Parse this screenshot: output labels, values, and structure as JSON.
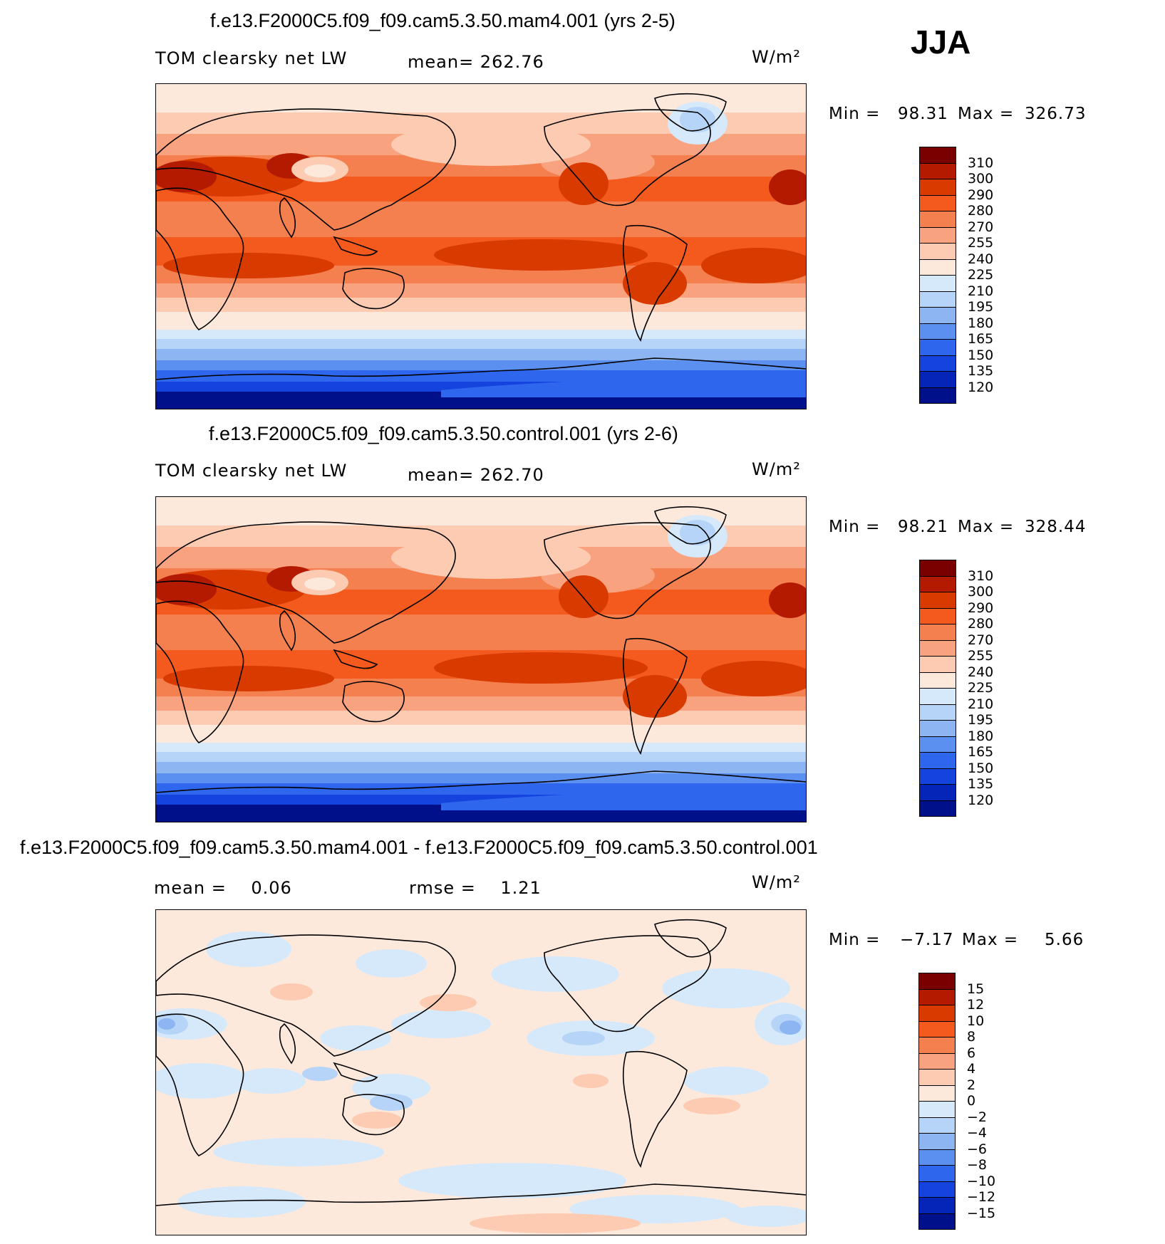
{
  "season": "JJA",
  "panels": [
    {
      "title": "f.e13.F2000C5.f09_f09.cam5.3.50.mam4.001 (yrs 2-5)",
      "left_label": "TOM clearsky net LW",
      "mid_label": "mean= 262.76",
      "units": "W/m²",
      "min_label": "Min =",
      "min_value": "98.31",
      "max_label": "Max =",
      "max_value": "326.73",
      "map_kind": "field",
      "colorbar": {
        "colors": [
          "#7a0000",
          "#b31a00",
          "#d93a00",
          "#f45a1e",
          "#f5804f",
          "#f9a27f",
          "#fccbb1",
          "#fde9dc",
          "#d6e9fb",
          "#b6d4f7",
          "#8cb5f2",
          "#5b8ff0",
          "#2f66ee",
          "#1443dd",
          "#0524b8",
          "#000f8a"
        ],
        "labels": [
          "310",
          "300",
          "290",
          "280",
          "270",
          "255",
          "240",
          "225",
          "210",
          "195",
          "180",
          "165",
          "150",
          "135",
          "120"
        ]
      }
    },
    {
      "title": "f.e13.F2000C5.f09_f09.cam5.3.50.control.001 (yrs 2-6)",
      "left_label": "TOM clearsky net LW",
      "mid_label": "mean= 262.70",
      "units": "W/m²",
      "min_label": "Min =",
      "min_value": "98.21",
      "max_label": "Max =",
      "max_value": "328.44",
      "map_kind": "field",
      "colorbar": {
        "colors": [
          "#7a0000",
          "#b31a00",
          "#d93a00",
          "#f45a1e",
          "#f5804f",
          "#f9a27f",
          "#fccbb1",
          "#fde9dc",
          "#d6e9fb",
          "#b6d4f7",
          "#8cb5f2",
          "#5b8ff0",
          "#2f66ee",
          "#1443dd",
          "#0524b8",
          "#000f8a"
        ],
        "labels": [
          "310",
          "300",
          "290",
          "280",
          "270",
          "255",
          "240",
          "225",
          "210",
          "195",
          "180",
          "165",
          "150",
          "135",
          "120"
        ]
      }
    },
    {
      "title": "f.e13.F2000C5.f09_f09.cam5.3.50.mam4.001 - f.e13.F2000C5.f09_f09.cam5.3.50.control.001",
      "left_label": "mean =    0.06",
      "mid_label": "rmse =    1.21",
      "units": "W/m²",
      "min_label": "Min =",
      "min_value": "−7.17",
      "max_label": "Max =",
      "max_value": "5.66",
      "map_kind": "diff",
      "colorbar": {
        "colors": [
          "#7a0000",
          "#b31a00",
          "#d93a00",
          "#f45a1e",
          "#f5804f",
          "#f9a27f",
          "#fccbb1",
          "#fde9dc",
          "#d6e9fb",
          "#b6d4f7",
          "#8cb5f2",
          "#5b8ff0",
          "#2f66ee",
          "#1443dd",
          "#0524b8",
          "#000f8a"
        ],
        "labels": [
          "15",
          "12",
          "10",
          "8",
          "6",
          "4",
          "2",
          "0",
          "−2",
          "−4",
          "−6",
          "−8",
          "−10",
          "−12",
          "−15"
        ]
      }
    }
  ]
}
